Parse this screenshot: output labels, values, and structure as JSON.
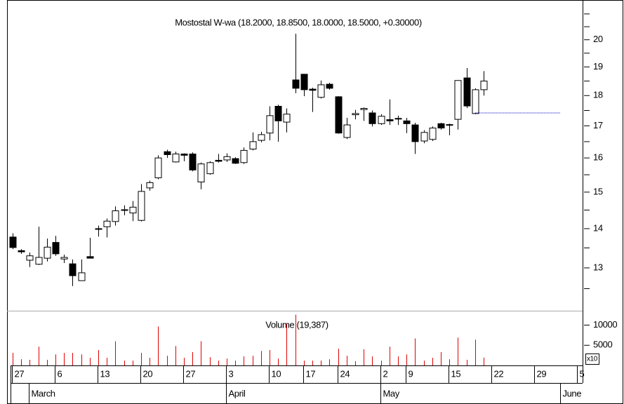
{
  "chart_data": {
    "type": "candlestick",
    "title": "Mostostal W-wa (18.2000, 18.8500, 18.0000, 18.5000, +0.30000)",
    "log_scale": true,
    "xlim": [
      -0.66,
      66.56
    ],
    "xticks": [
      {
        "value": 0,
        "label": "27"
      },
      {
        "value": 5,
        "label": "6"
      },
      {
        "value": 10,
        "label": "13"
      },
      {
        "value": 15,
        "label": "20"
      },
      {
        "value": 20,
        "label": "27"
      },
      {
        "value": 25,
        "label": "3"
      },
      {
        "value": 30,
        "label": "10"
      },
      {
        "value": 34,
        "label": "17"
      },
      {
        "value": 38,
        "label": "24"
      },
      {
        "value": 43,
        "label": "2"
      },
      {
        "value": 46,
        "label": "9"
      },
      {
        "value": 51,
        "label": "15"
      },
      {
        "value": 56,
        "label": "22"
      },
      {
        "value": 61,
        "label": "29"
      },
      {
        "value": 66,
        "label": "5"
      }
    ],
    "month_ticks": [
      {
        "value": 2,
        "label": "March"
      },
      {
        "value": 25,
        "label": "April"
      },
      {
        "value": 43,
        "label": "May"
      },
      {
        "value": 64,
        "label": "June"
      }
    ],
    "open": [
      13.78,
      13.43,
      13.19,
      13.09,
      13.24,
      13.64,
      13.22,
      13.1,
      12.69,
      13.28,
      14.0,
      14.05,
      14.19,
      14.49,
      14.42,
      14.22,
      15.12,
      15.41,
      16.19,
      15.88,
      16.12,
      16.12,
      15.29,
      15.53,
      15.93,
      15.94,
      15.98,
      15.86,
      16.27,
      16.54,
      16.77,
      17.64,
      17.12,
      18.54,
      18.74,
      18.22,
      17.94,
      18.39,
      17.96,
      16.63,
      17.36,
      17.53,
      17.42,
      17.07,
      17.2,
      17.22,
      17.16,
      17.03,
      16.52,
      16.57,
      17.07,
      17.04,
      17.21,
      18.61,
      17.4,
      18.2
    ],
    "high": [
      13.88,
      13.47,
      13.38,
      14.05,
      13.74,
      13.81,
      13.33,
      13.21,
      13.21,
      13.76,
      14.08,
      14.27,
      14.6,
      14.63,
      14.75,
      15.23,
      15.33,
      16.08,
      16.25,
      16.19,
      16.14,
      16.17,
      15.86,
      15.9,
      16.12,
      16.14,
      16.02,
      16.32,
      16.79,
      16.81,
      17.64,
      17.69,
      17.57,
      20.23,
      18.74,
      18.27,
      18.52,
      18.44,
      17.98,
      17.26,
      17.52,
      17.6,
      17.5,
      17.38,
      17.87,
      17.33,
      17.26,
      17.1,
      16.86,
      16.98,
      17.1,
      17.07,
      18.52,
      18.96,
      18.25,
      18.85
    ],
    "low": [
      13.47,
      13.35,
      13.02,
      13.07,
      13.16,
      13.3,
      13.12,
      12.56,
      12.69,
      13.24,
      13.79,
      13.77,
      14.08,
      14.36,
      14.2,
      14.19,
      15.04,
      15.37,
      16.0,
      15.86,
      15.9,
      15.6,
      15.08,
      15.5,
      15.86,
      15.88,
      15.82,
      15.82,
      16.23,
      16.48,
      16.54,
      16.5,
      16.79,
      18.08,
      17.98,
      17.45,
      17.9,
      18.2,
      16.75,
      16.58,
      17.21,
      17.16,
      16.98,
      17.03,
      17.03,
      17.03,
      16.77,
      16.12,
      16.45,
      16.52,
      16.88,
      16.7,
      16.88,
      17.58,
      17.38,
      18.0
    ],
    "close": [
      13.51,
      13.4,
      13.3,
      13.26,
      13.52,
      13.35,
      13.26,
      12.81,
      12.88,
      13.24,
      14.0,
      14.2,
      14.48,
      14.51,
      14.58,
      15.02,
      15.27,
      16.0,
      16.1,
      16.12,
      16.08,
      15.64,
      15.82,
      15.86,
      15.9,
      16.04,
      15.84,
      16.23,
      16.5,
      16.72,
      17.33,
      17.16,
      17.38,
      18.25,
      18.2,
      18.18,
      18.37,
      18.25,
      16.77,
      17.03,
      17.4,
      17.57,
      17.07,
      17.31,
      17.16,
      17.24,
      17.07,
      16.5,
      16.79,
      16.93,
      16.93,
      17.02,
      18.52,
      17.65,
      18.2,
      18.5
    ],
    "volume": [
      3100,
      1550,
      1400,
      4650,
      1400,
      2750,
      3100,
      3100,
      2750,
      1900,
      3800,
      1900,
      6000,
      1200,
      1200,
      3100,
      1900,
      9650,
      2400,
      4800,
      1900,
      3300,
      6000,
      2050,
      1200,
      1700,
      1200,
      2250,
      2400,
      3600,
      3800,
      1700,
      10350,
      12600,
      1200,
      1200,
      1200,
      1550,
      4150,
      2400,
      1050,
      4000,
      2250,
      1200,
      4650,
      2250,
      2750,
      6700,
      1200,
      1900,
      3300,
      1550,
      6900,
      1400,
      6400,
      1938.7
    ],
    "up_color": "#ffffff",
    "down_color": "#000000",
    "volume_color": "#e00000",
    "ylim": [
      11.99,
      21.56
    ],
    "yticks": [
      13,
      14,
      15,
      16,
      17,
      18,
      19,
      20
    ],
    "yticks_minor": [
      12.5,
      13.5,
      14.5,
      15.5,
      16.5,
      17.5,
      18.5,
      19.5,
      20.5,
      21
    ],
    "y2lim": [
      0,
      13400
    ],
    "y2ticks": [
      5000,
      10000
    ],
    "volume_title": "Volume (19,387)",
    "y2_scale_label": "x10",
    "reference_line": {
      "value": 17.42,
      "x": [
        54,
        64
      ],
      "color": "#0000cc"
    }
  }
}
